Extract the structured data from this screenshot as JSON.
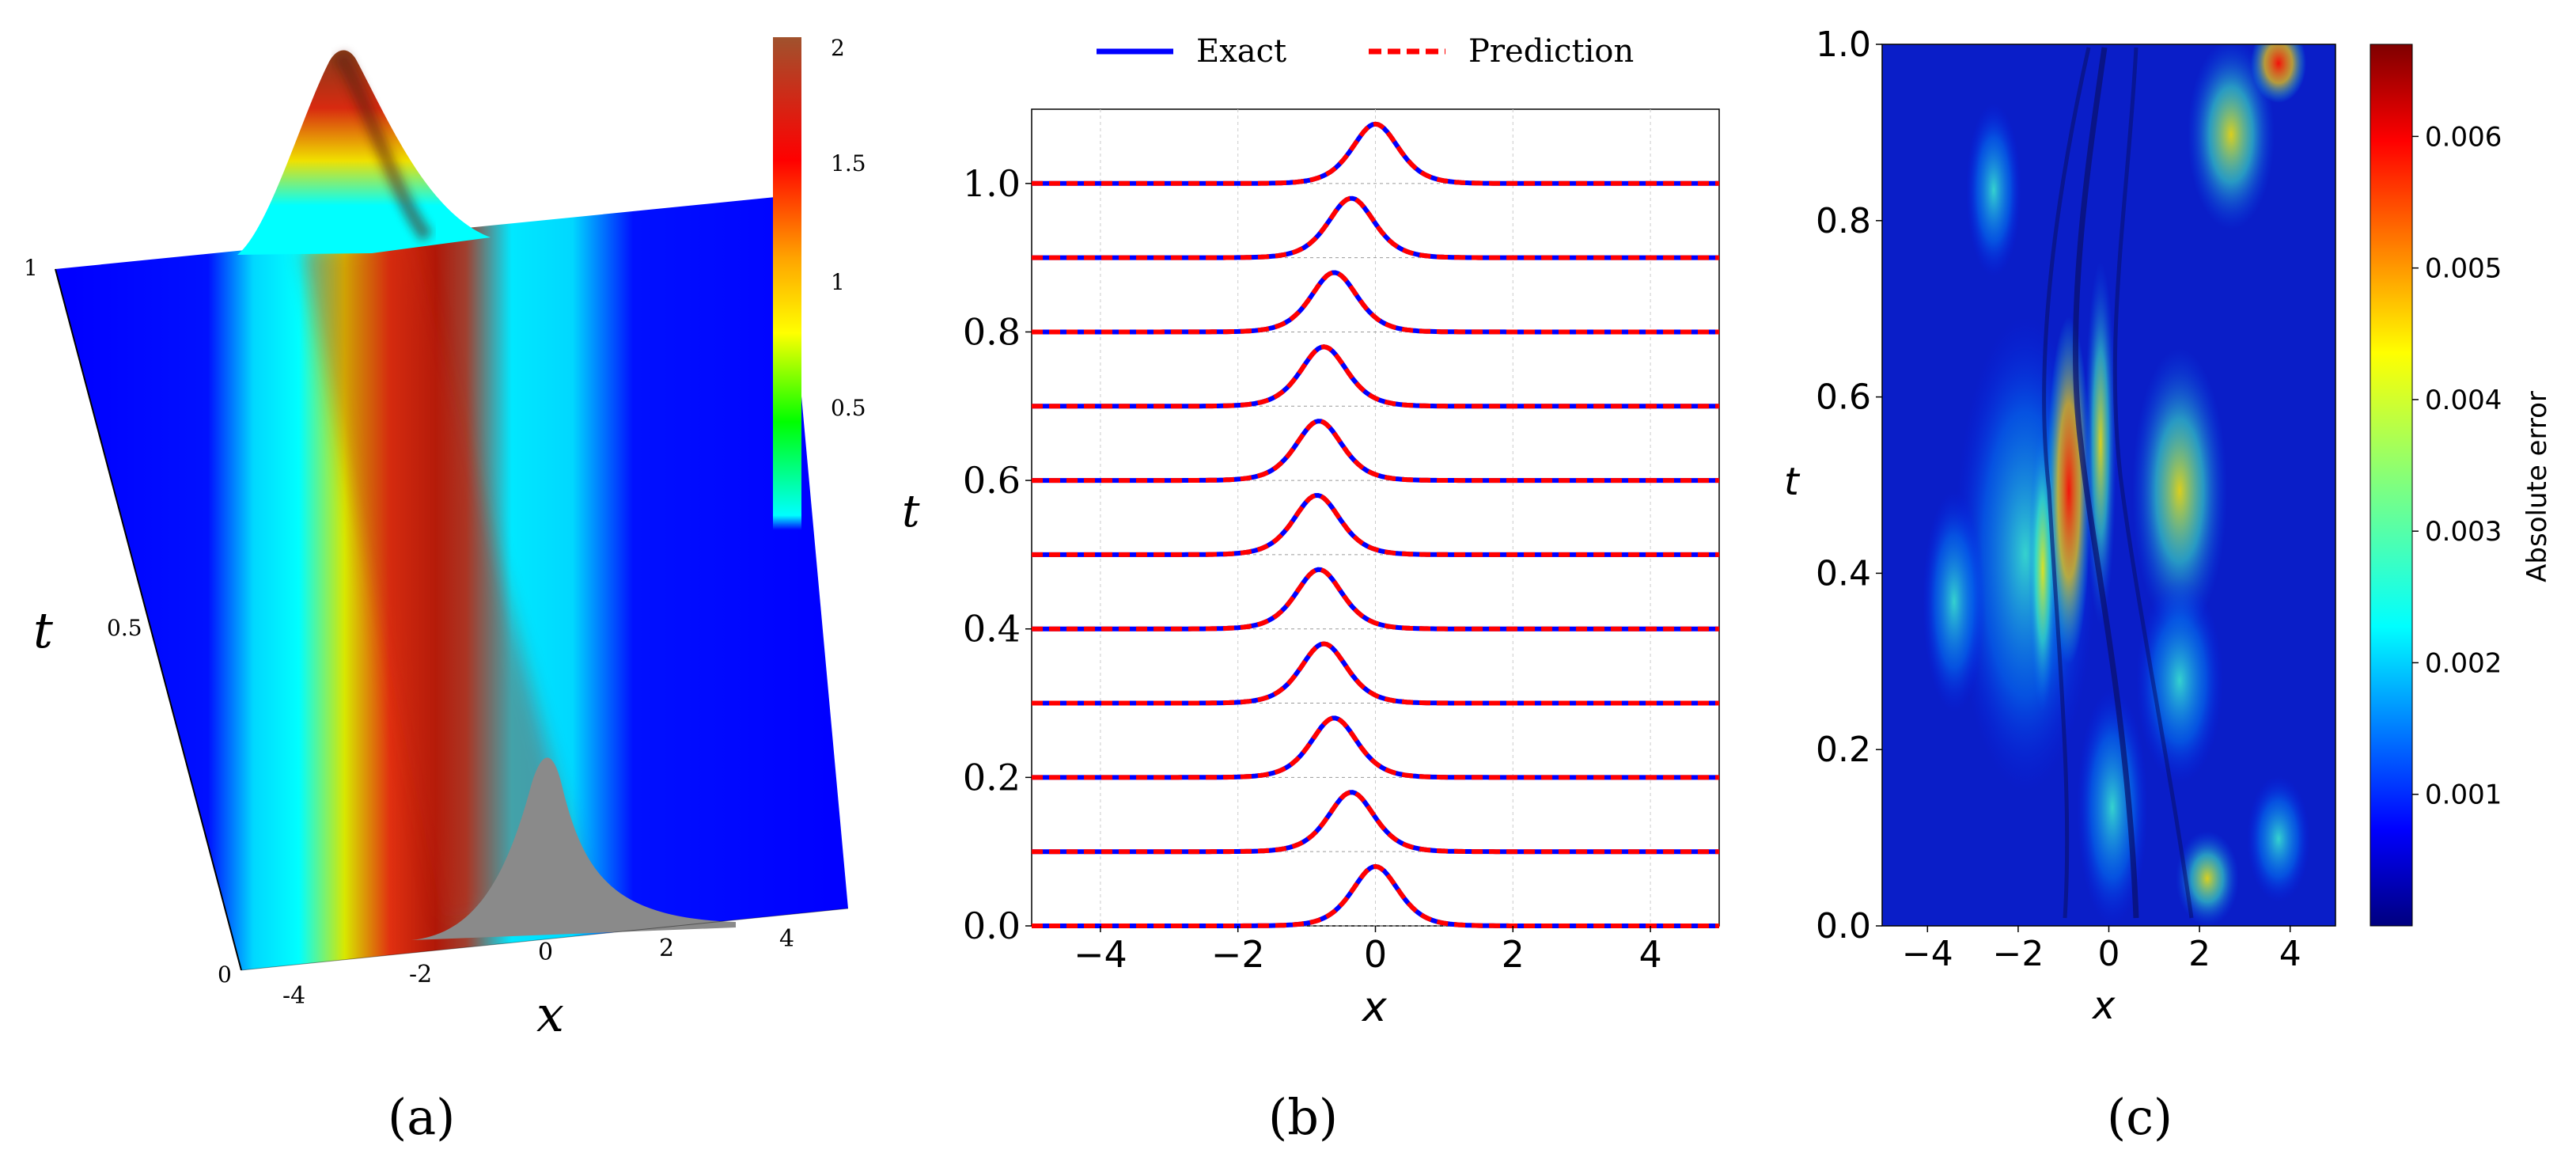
{
  "panel_labels": {
    "a": "(a)",
    "b": "(b)",
    "c": "(c)"
  },
  "chart_data": [
    {
      "type": "surface3d",
      "panel": "(a)",
      "xlabel": "x",
      "ylabel": "t",
      "xlim": [
        -5,
        5
      ],
      "tlim": [
        0,
        1
      ],
      "zlim": [
        0,
        2
      ],
      "x_ticks": [
        "-4",
        "-2",
        "0",
        "2",
        "4"
      ],
      "t_ticks": [
        "0",
        "0.5",
        "1"
      ],
      "colorbar": {
        "ticks": [
          "0.5",
          "1",
          "1.5",
          "2"
        ],
        "range": [
          0,
          2
        ]
      },
      "peak_center_by_t": {
        "t": [
          0,
          0.5,
          1
        ],
        "x": [
          0.0,
          -0.8,
          0.0
        ]
      },
      "peak_height_by_t": {
        "t": [
          0,
          0.5,
          1
        ],
        "height": [
          1.0,
          1.8,
          2.0
        ]
      }
    },
    {
      "type": "line",
      "panel": "(b)",
      "xlabel": "x",
      "ylabel": "t",
      "xlim": [
        -5,
        5
      ],
      "ylim": [
        0,
        1.1
      ],
      "x_ticks": [
        -4,
        -2,
        0,
        2,
        4
      ],
      "x_tick_labels": [
        "−4",
        "−2",
        "0",
        "2",
        "4"
      ],
      "y_ticks": [
        0,
        0.2,
        0.4,
        0.6,
        0.8,
        1.0
      ],
      "y_tick_labels": [
        "0.0",
        "0.2",
        "0.4",
        "0.6",
        "0.8",
        "1.0"
      ],
      "legend": [
        "Exact",
        "Prediction"
      ],
      "legend_position": "top",
      "series": [
        {
          "name": "Exact",
          "color": "#0000ff",
          "style": "solid"
        },
        {
          "name": "Prediction",
          "color": "#ff0000",
          "style": "dashed"
        }
      ],
      "offsets_t": [
        0.0,
        0.1,
        0.2,
        0.3,
        0.4,
        0.5,
        0.6,
        0.7,
        0.8,
        0.9,
        1.0
      ],
      "peak_centers_x": [
        0.0,
        -0.35,
        -0.6,
        -0.75,
        -0.82,
        -0.85,
        -0.82,
        -0.75,
        -0.6,
        -0.35,
        0.0
      ],
      "peak_amplitude": 0.08
    },
    {
      "type": "heatmap",
      "panel": "(c)",
      "xlabel": "x",
      "ylabel": "t",
      "xlim": [
        -5,
        5
      ],
      "ylim": [
        0,
        1
      ],
      "x_tick_labels": [
        "−4",
        "−2",
        "0",
        "2",
        "4"
      ],
      "y_tick_labels": [
        "0.0",
        "0.2",
        "0.4",
        "0.6",
        "0.8",
        "1.0"
      ],
      "colorbar_label": "Absolute error",
      "colorbar_range": [
        0,
        0.0067
      ],
      "colorbar_tick_values": [
        0.001,
        0.002,
        0.003,
        0.004,
        0.005,
        0.006
      ],
      "colorbar_tick_labels": [
        "0.001",
        "0.002",
        "0.003",
        "0.004",
        "0.005",
        "0.006"
      ],
      "max_error": 0.0067
    }
  ]
}
